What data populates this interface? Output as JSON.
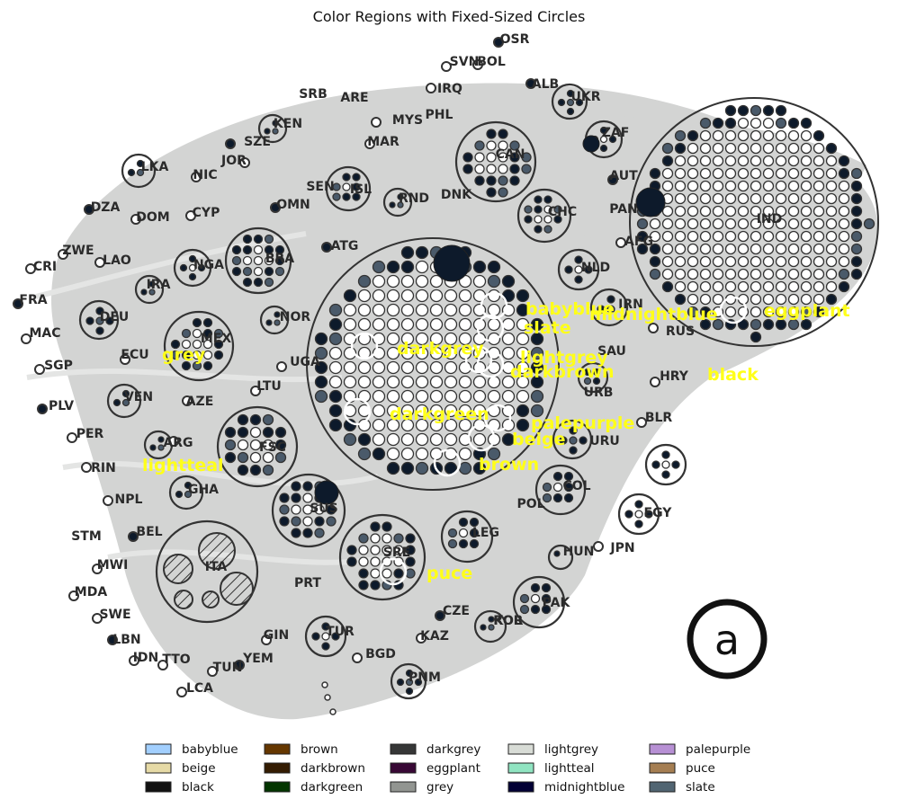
{
  "title": "Color Regions with Fixed-Sized Circles",
  "panel_letter": "a",
  "country_labels": [
    "OSR",
    "SVN",
    "BOL",
    "IRQ",
    "ALB",
    "UKR",
    "SRB",
    "ARE",
    "MYS",
    "PHL",
    "KEN",
    "SZE",
    "MAR",
    "JOR",
    "LKA",
    "NIC",
    "ZAF",
    "CAN",
    "AUT",
    "SEN",
    "ISL",
    "DNK",
    "RND",
    "CYP",
    "DZA",
    "DOM",
    "OMN",
    "CHC",
    "PAN",
    "IND",
    "ATG",
    "ZWE",
    "CRI",
    "LAO",
    "FRA",
    "BRA",
    "NGA",
    "AFG",
    "IRA",
    "DEU",
    "NLD",
    "NOR",
    "MAC",
    "MEX",
    "SGP",
    "ECU",
    "IRN",
    "PLV",
    "UGA",
    "RUS",
    "LTU",
    "AZE",
    "HRY",
    "VEN",
    "SAU",
    "PER",
    "URB",
    "BLR",
    "ARG",
    "FSC",
    "URU",
    "RIN",
    "POL",
    "GHA",
    "NPL",
    "SUS",
    "COL",
    "BEL",
    "ROL",
    "EGY",
    "STM",
    "LEG",
    "MWI",
    "ITA",
    "HUN",
    "JPN",
    "MDA",
    "PRT",
    "SRE",
    "SWE",
    "CZE",
    "LBN",
    "TUR",
    "KAZ",
    "KOR",
    "PAK",
    "IDN",
    "TTO",
    "GIN",
    "YEM",
    "BGD",
    "TUN",
    "PNM",
    "LCA"
  ],
  "region_labels": [
    "babyblue",
    "slate",
    "midnightblue",
    "eggplant",
    "grey",
    "darkgrey",
    "lightgrey",
    "darkbrown",
    "black",
    "darkgreen",
    "palepurple",
    "beige",
    "lightteal",
    "brown",
    "puce"
  ],
  "legend": [
    {
      "name": "babyblue",
      "color": "#a2cffe"
    },
    {
      "name": "beige",
      "color": "#e6daa6"
    },
    {
      "name": "black",
      "color": "#111111"
    },
    {
      "name": "brown",
      "color": "#653700"
    },
    {
      "name": "darkbrown",
      "color": "#341c02"
    },
    {
      "name": "darkgreen",
      "color": "#033500"
    },
    {
      "name": "darkgrey",
      "color": "#363737"
    },
    {
      "name": "eggplant",
      "color": "#380835"
    },
    {
      "name": "grey",
      "color": "#929591"
    },
    {
      "name": "lightgrey",
      "color": "#d8dcd6"
    },
    {
      "name": "lightteal",
      "color": "#90e4c1"
    },
    {
      "name": "midnightblue",
      "color": "#020035"
    },
    {
      "name": "palepurple",
      "color": "#b790d4"
    },
    {
      "name": "puce",
      "color": "#a57e52"
    },
    {
      "name": "slate",
      "color": "#516572"
    }
  ],
  "colors": {
    "background": "#ffffff",
    "blob": "#d3d4d3",
    "region_text": "#ffff19",
    "circle_stroke": "#333333",
    "dark_fill": "#0d1a2b",
    "mid_fill": "#4a5a6a"
  }
}
